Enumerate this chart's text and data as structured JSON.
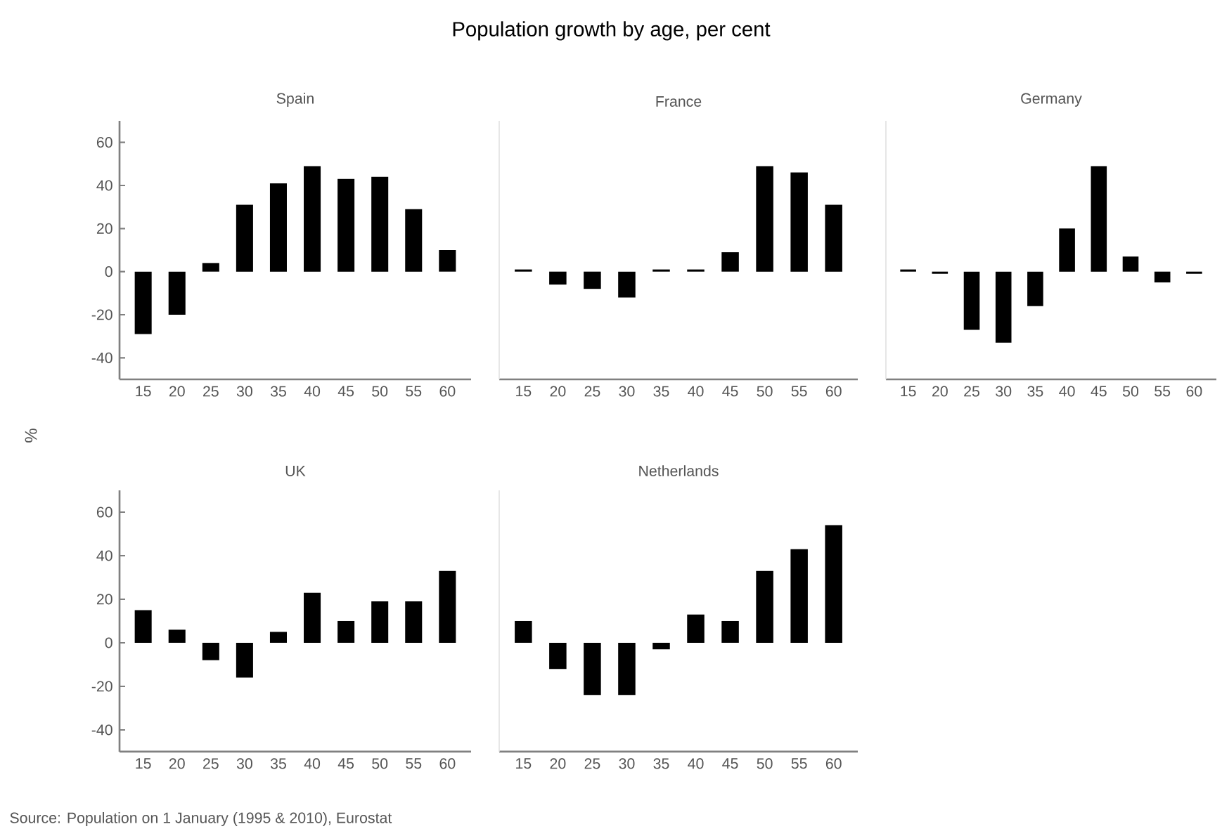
{
  "chart_data": [
    {
      "type": "other",
      "title": "Population growth by age, per cent",
      "annotations": [
        "Source: Population on 1 January (1995 & 2010), Eurostat"
      ]
    },
    {
      "type": "bar",
      "title": "Spain",
      "ylabel": "%",
      "categories": [
        "15",
        "20",
        "25",
        "30",
        "35",
        "40",
        "45",
        "50",
        "55",
        "60"
      ],
      "values": [
        -29,
        -20,
        4,
        31,
        41,
        49,
        43,
        44,
        29,
        10
      ],
      "color": "#000000",
      "ylim": [
        -50,
        70
      ],
      "yticks": [
        -40,
        -20,
        0,
        20,
        40,
        60
      ]
    },
    {
      "type": "bar",
      "title": "France",
      "categories": [
        "15",
        "20",
        "25",
        "30",
        "35",
        "40",
        "45",
        "50",
        "55",
        "60"
      ],
      "values": [
        1,
        -6,
        -8,
        -12,
        1,
        1,
        9,
        49,
        46,
        31
      ],
      "color": "#000000",
      "ylim": [
        -50,
        70
      ],
      "yticks": [
        -40,
        -20,
        0,
        20,
        40,
        60
      ],
      "tick_labels": "x"
    },
    {
      "type": "bar",
      "title": "Germany",
      "categories": [
        "15",
        "20",
        "25",
        "30",
        "35",
        "40",
        "45",
        "50",
        "55",
        "60"
      ],
      "values": [
        1,
        -1,
        -27,
        -33,
        -16,
        20,
        49,
        7,
        -5,
        -1
      ],
      "color": "#000000",
      "ylim": [
        -50,
        70
      ],
      "yticks": [
        -40,
        -20,
        0,
        20,
        40,
        60
      ],
      "tick_labels": "x"
    },
    {
      "type": "bar",
      "title": "UK",
      "categories": [
        "15",
        "20",
        "25",
        "30",
        "35",
        "40",
        "45",
        "50",
        "55",
        "60"
      ],
      "values": [
        15,
        6,
        -8,
        -16,
        5,
        23,
        10,
        19,
        19,
        33
      ],
      "color": "#000000",
      "ylim": [
        -50,
        70
      ],
      "yticks": [
        -40,
        -20,
        0,
        20,
        40,
        60
      ]
    },
    {
      "type": "bar",
      "title": "Netherlands",
      "categories": [
        "15",
        "20",
        "25",
        "30",
        "35",
        "40",
        "45",
        "50",
        "55",
        "60"
      ],
      "values": [
        10,
        -12,
        -24,
        -24,
        -3,
        13,
        10,
        33,
        43,
        54
      ],
      "color": "#000000",
      "ylim": [
        -50,
        70
      ],
      "yticks": [
        -40,
        -20,
        0,
        20,
        40,
        60
      ],
      "tick_labels": "x"
    }
  ]
}
